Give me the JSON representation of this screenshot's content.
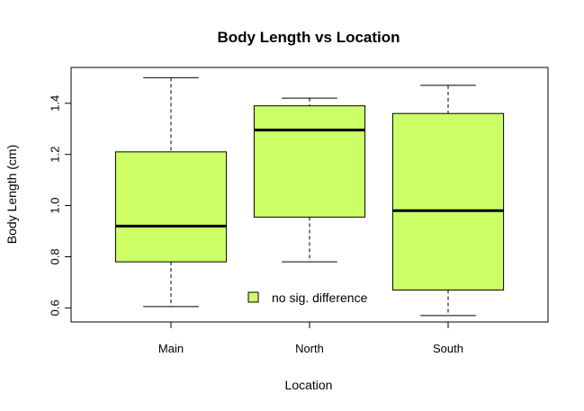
{
  "chart_data": {
    "type": "box",
    "title": "Body Length vs Location",
    "xlabel": "Location",
    "ylabel": "Body Length (cm)",
    "categories": [
      "Main",
      "North",
      "South"
    ],
    "boxes": [
      {
        "category": "Main",
        "min": 0.605,
        "q1": 0.78,
        "median": 0.92,
        "q3": 1.21,
        "max": 1.5
      },
      {
        "category": "North",
        "min": 0.78,
        "q1": 0.955,
        "median": 1.295,
        "q3": 1.39,
        "max": 1.42
      },
      {
        "category": "South",
        "min": 0.57,
        "q1": 0.67,
        "median": 0.98,
        "q3": 1.36,
        "max": 1.47
      }
    ],
    "ylim": [
      0.545,
      1.54
    ],
    "yticks": [
      0.6,
      0.8,
      1.0,
      1.2,
      1.4
    ],
    "ytick_labels": [
      "0.6",
      "0.8",
      "1.0",
      "1.2",
      "1.4"
    ],
    "box_color": "#ccff66",
    "legend": {
      "label": "no sig. difference",
      "color": "#ccff66",
      "placement": "bottom-center"
    },
    "grid": false
  }
}
